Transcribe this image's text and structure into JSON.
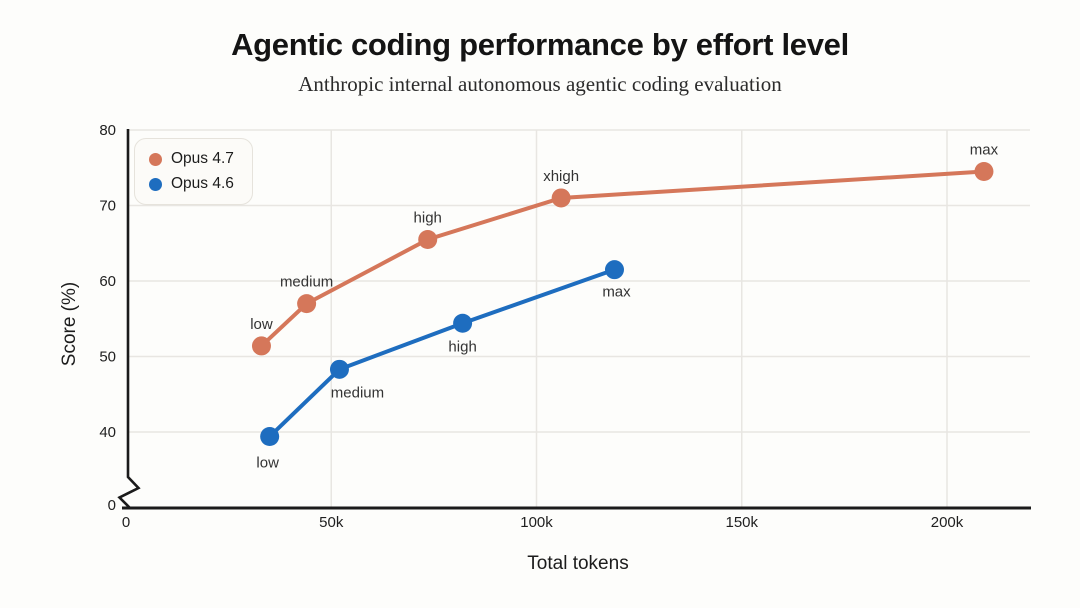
{
  "header": {
    "title": "Agentic coding performance by effort level",
    "subtitle": "Anthropic internal autonomous agentic coding evaluation"
  },
  "chart_data": {
    "type": "line",
    "title": "Agentic coding performance by effort level",
    "subtitle": "Anthropic internal autonomous agentic coding evaluation",
    "xlabel": "Total tokens",
    "ylabel": "Score (%)",
    "x_unit": "tokens (thousands)",
    "xlim_tokens_k": [
      0,
      220
    ],
    "ylim": [
      0,
      80
    ],
    "y_axis_break_between": [
      0,
      40
    ],
    "grid": true,
    "legend_position": "top-left",
    "x_ticks": [
      {
        "label": "0",
        "value": 0
      },
      {
        "label": "50k",
        "value": 50
      },
      {
        "label": "100k",
        "value": 100
      },
      {
        "label": "150k",
        "value": 150
      },
      {
        "label": "200k",
        "value": 200
      }
    ],
    "y_ticks": [
      {
        "label": "80",
        "value": 80
      },
      {
        "label": "70",
        "value": 70
      },
      {
        "label": "60",
        "value": 60
      },
      {
        "label": "50",
        "value": 50
      },
      {
        "label": "40",
        "value": 40
      },
      {
        "label": "0",
        "value": 0
      }
    ],
    "colors": {
      "grid": "#e8e6e2",
      "axis": "#1b1b1b",
      "opus_4_7": "#d5775a",
      "opus_4_6": "#1e6dbf"
    },
    "series": [
      {
        "name": "Opus 4.7",
        "color": "#d5775a",
        "points": [
          {
            "label": "low",
            "tokens_k": 33,
            "score": 51.4,
            "label_pos": "above",
            "label_dx": 0,
            "label_dy": -17
          },
          {
            "label": "medium",
            "tokens_k": 44,
            "score": 57.0,
            "label_pos": "above",
            "label_dx": 0,
            "label_dy": -17
          },
          {
            "label": "high",
            "tokens_k": 73.5,
            "score": 65.5,
            "label_pos": "above",
            "label_dx": 0,
            "label_dy": -17
          },
          {
            "label": "xhigh",
            "tokens_k": 106,
            "score": 71.0,
            "label_pos": "above",
            "label_dx": 0,
            "label_dy": -17
          },
          {
            "label": "max",
            "tokens_k": 209,
            "score": 74.5,
            "label_pos": "above",
            "label_dx": 0,
            "label_dy": -17
          }
        ]
      },
      {
        "name": "Opus 4.6",
        "color": "#1e6dbf",
        "points": [
          {
            "label": "low",
            "tokens_k": 35,
            "score": 39.4,
            "label_pos": "below",
            "label_dx": -2,
            "label_dy": 31
          },
          {
            "label": "medium",
            "tokens_k": 52,
            "score": 48.3,
            "label_pos": "below",
            "label_dx": 18,
            "label_dy": 28
          },
          {
            "label": "high",
            "tokens_k": 82,
            "score": 54.4,
            "label_pos": "below",
            "label_dx": 0,
            "label_dy": 28
          },
          {
            "label": "max",
            "tokens_k": 119,
            "score": 61.5,
            "label_pos": "below",
            "label_dx": 2,
            "label_dy": 27
          }
        ]
      }
    ]
  }
}
